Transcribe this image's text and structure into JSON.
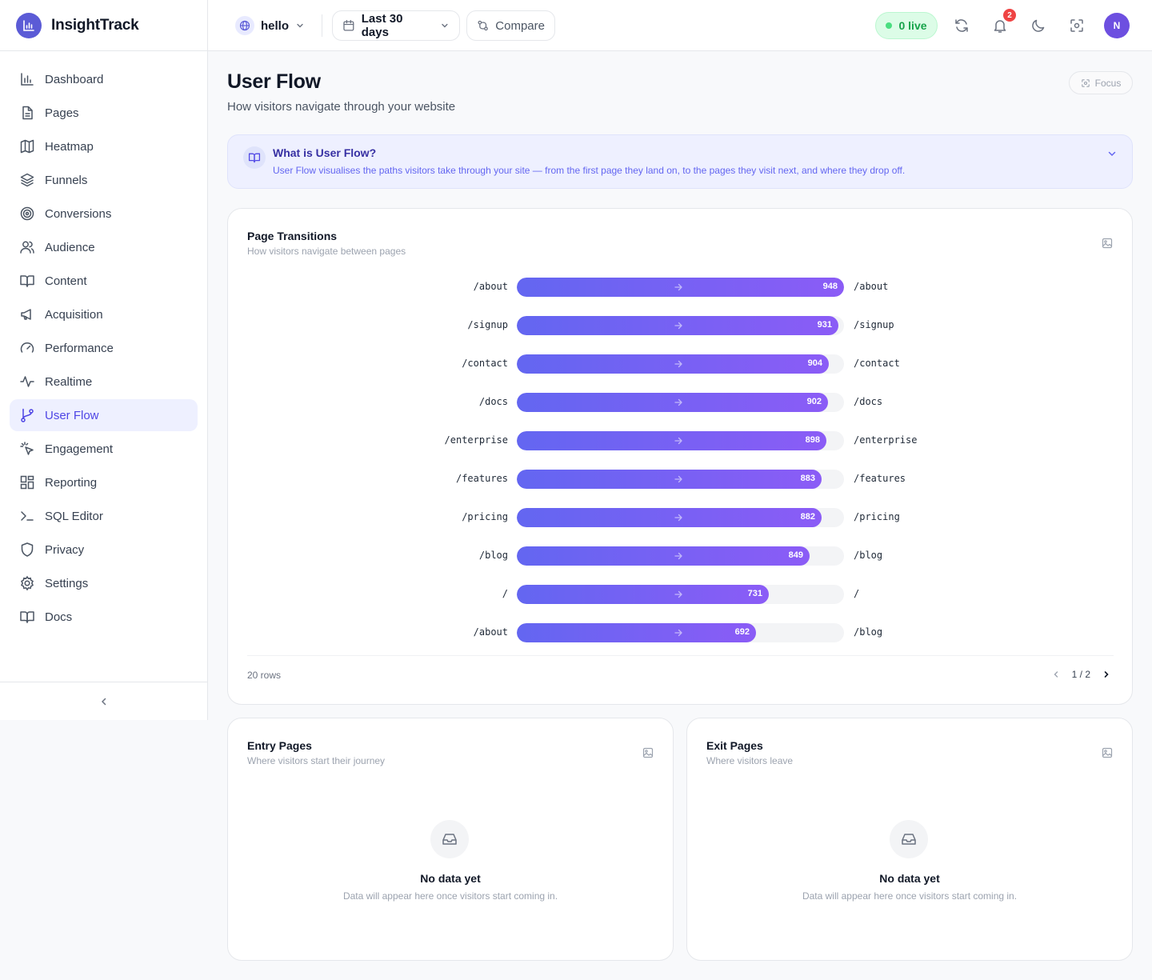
{
  "app": {
    "name": "InsightTrack"
  },
  "sidebar": {
    "items": [
      {
        "label": "Dashboard",
        "icon": "bar-chart-icon"
      },
      {
        "label": "Pages",
        "icon": "file-icon"
      },
      {
        "label": "Heatmap",
        "icon": "map-icon"
      },
      {
        "label": "Funnels",
        "icon": "layers-icon"
      },
      {
        "label": "Conversions",
        "icon": "target-icon"
      },
      {
        "label": "Audience",
        "icon": "users-icon"
      },
      {
        "label": "Content",
        "icon": "book-open-icon"
      },
      {
        "label": "Acquisition",
        "icon": "megaphone-icon"
      },
      {
        "label": "Performance",
        "icon": "gauge-icon"
      },
      {
        "label": "Realtime",
        "icon": "activity-icon"
      },
      {
        "label": "User Flow",
        "icon": "git-branch-icon",
        "active": true
      },
      {
        "label": "Engagement",
        "icon": "cursor-click-icon"
      },
      {
        "label": "Reporting",
        "icon": "layout-grid-icon"
      },
      {
        "label": "SQL Editor",
        "icon": "terminal-icon"
      },
      {
        "label": "Privacy",
        "icon": "shield-icon"
      },
      {
        "label": "Settings",
        "icon": "gear-icon"
      },
      {
        "label": "Docs",
        "icon": "book-icon"
      }
    ]
  },
  "topbar": {
    "site": "hello",
    "date_range": "Last 30 days",
    "compare_label": "Compare",
    "live_label": "0 live",
    "notifications_count": "2",
    "avatar_initial": "N"
  },
  "page": {
    "title": "User Flow",
    "subtitle": "How visitors navigate through your website",
    "focus_label": "Focus"
  },
  "info": {
    "title": "What is User Flow?",
    "text": "User Flow visualises the paths visitors take through your site — from the first page they land on, to the pages they visit next, and where they drop off."
  },
  "transitions": {
    "title": "Page Transitions",
    "subtitle": "How visitors navigate between pages",
    "max": 948,
    "rows": [
      {
        "from": "/about",
        "to": "/about",
        "count": 948
      },
      {
        "from": "/signup",
        "to": "/signup",
        "count": 931
      },
      {
        "from": "/contact",
        "to": "/contact",
        "count": 904
      },
      {
        "from": "/docs",
        "to": "/docs",
        "count": 902
      },
      {
        "from": "/enterprise",
        "to": "/enterprise",
        "count": 898
      },
      {
        "from": "/features",
        "to": "/features",
        "count": 883
      },
      {
        "from": "/pricing",
        "to": "/pricing",
        "count": 882
      },
      {
        "from": "/blog",
        "to": "/blog",
        "count": 849
      },
      {
        "from": "/",
        "to": "/",
        "count": 731
      },
      {
        "from": "/about",
        "to": "/blog",
        "count": 692
      }
    ],
    "rows_label": "20 rows",
    "page_label": "1 / 2"
  },
  "entry": {
    "title": "Entry Pages",
    "subtitle": "Where visitors start their journey",
    "empty_title": "No data yet",
    "empty_text": "Data will appear here once visitors start coming in."
  },
  "exit": {
    "title": "Exit Pages",
    "subtitle": "Where visitors leave",
    "empty_title": "No data yet",
    "empty_text": "Data will appear here once visitors start coming in."
  },
  "colors": {
    "accent": "#5b5bd6",
    "bar_start": "#6366f1",
    "bar_end": "#8b5cf6",
    "live": "#16a34a",
    "badge": "#ef4444"
  }
}
